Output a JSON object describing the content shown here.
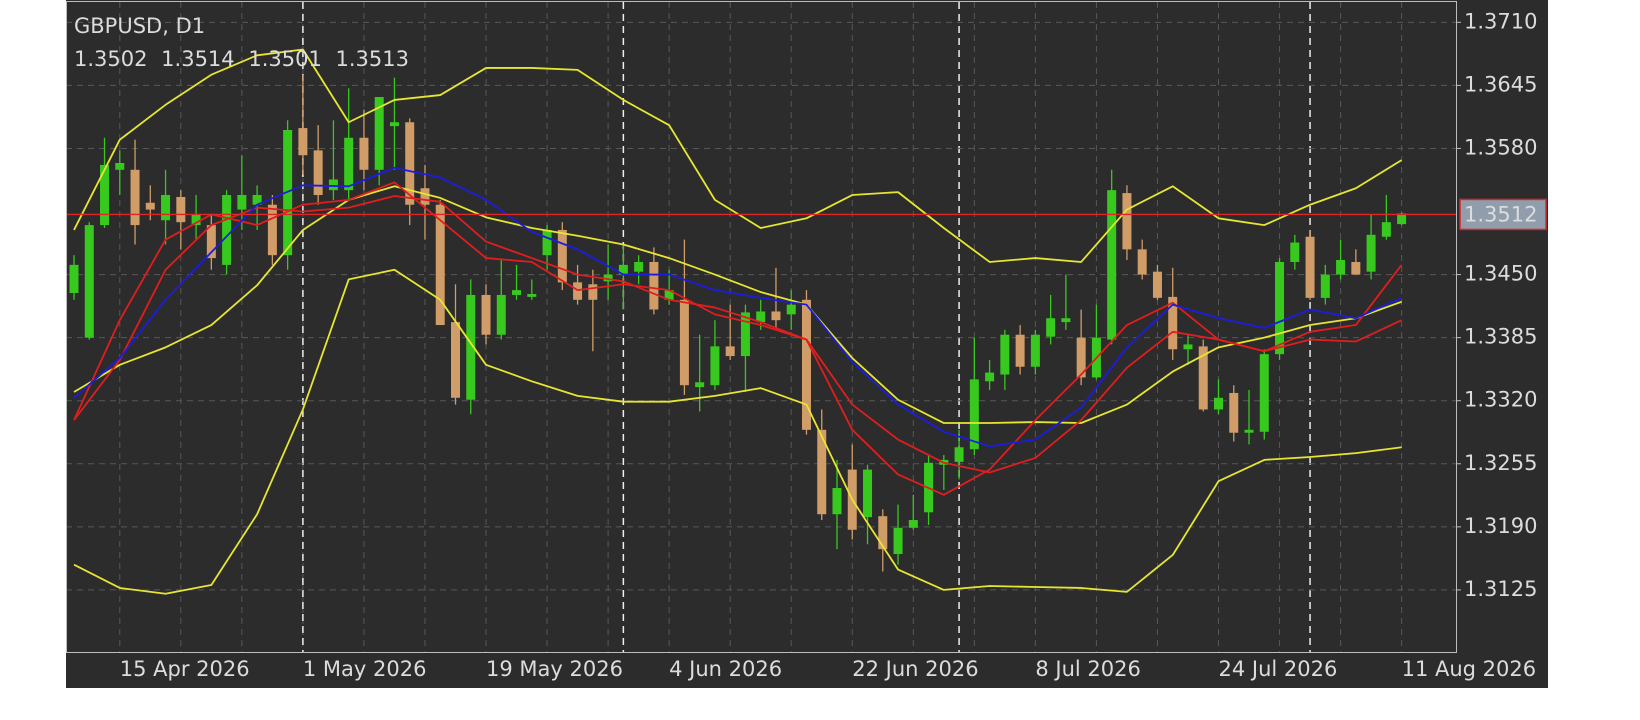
{
  "chart_data": {
    "type": "candlestick",
    "title": "GBPUSD, D1",
    "categories": [
      null,
      null,
      null,
      "15 Apr 2026",
      null,
      null,
      null,
      null,
      null,
      null,
      null,
      null,
      null,
      null,
      null,
      "1 May 2026",
      null,
      null,
      null,
      null,
      null,
      null,
      null,
      null,
      null,
      null,
      null,
      "19 May 2026",
      null,
      null,
      null,
      null,
      null,
      null,
      null,
      null,
      null,
      null,
      null,
      "4 Jun 2026",
      null,
      null,
      null,
      null,
      null,
      null,
      null,
      null,
      null,
      null,
      null,
      "22 Jun 2026",
      null,
      null,
      null,
      null,
      null,
      null,
      null,
      null,
      null,
      null,
      null,
      "8 Jul 2026",
      null,
      null,
      null,
      null,
      null,
      null,
      null,
      null,
      null,
      null,
      null,
      "24 Jul 2026",
      null,
      null,
      null,
      null,
      null,
      null,
      null,
      null,
      null,
      null,
      null,
      "11 Aug 2026"
    ],
    "open": [
      1.3431,
      1.3385,
      1.3501,
      1.3558,
      1.3558,
      1.3524,
      1.3506,
      1.353,
      1.3501,
      1.3501,
      1.346,
      1.3517,
      1.3522,
      1.3522,
      1.347,
      1.3601,
      1.3578,
      1.3537,
      1.3537,
      1.3591,
      1.3558,
      1.3603,
      1.3607,
      1.3539,
      1.3522,
      1.3401,
      1.3321,
      1.3429,
      1.3388,
      1.3429,
      1.3427,
      1.347,
      1.3496,
      1.3442,
      1.344,
      1.3443,
      1.345,
      1.3453,
      1.3463,
      1.3424,
      1.3424,
      1.3334,
      1.3336,
      1.3376,
      1.3366,
      1.3401,
      1.3412,
      1.3409,
      1.3424,
      1.329,
      1.3203,
      1.3249,
      1.32,
      1.3201,
      1.3162,
      1.3189,
      1.3205,
      1.3254,
      1.3257,
      1.327,
      1.334,
      1.3347,
      1.3388,
      1.3355,
      1.3386,
      1.3401,
      1.3385,
      1.3344,
      1.3383,
      1.3534,
      1.3476,
      1.3453,
      1.3427,
      1.3373,
      1.3376,
      1.3311,
      1.3328,
      1.3287,
      1.3288,
      1.3368,
      1.3463,
      1.3489,
      1.3426,
      1.345,
      1.3463,
      1.3453,
      1.3489,
      1.3502
    ],
    "high": [
      1.347,
      1.3504,
      1.3591,
      1.3578,
      1.3589,
      1.3542,
      1.3558,
      1.3537,
      1.3532,
      1.3512,
      1.3537,
      1.3573,
      1.3542,
      1.3532,
      1.3609,
      1.3656,
      1.3604,
      1.3609,
      1.3642,
      1.362,
      1.3633,
      1.3653,
      1.3611,
      1.3563,
      1.3527,
      1.344,
      1.3445,
      1.344,
      1.3465,
      1.346,
      1.3445,
      1.3501,
      1.3504,
      1.346,
      1.3455,
      1.3481,
      1.3481,
      1.347,
      1.3478,
      1.3455,
      1.3486,
      1.3388,
      1.3403,
      1.3419,
      1.3419,
      1.3424,
      1.3457,
      1.3434,
      1.3434,
      1.3311,
      1.3259,
      1.3275,
      1.3254,
      1.3208,
      1.3213,
      1.3223,
      1.3264,
      1.3264,
      1.329,
      1.3385,
      1.3362,
      1.3393,
      1.3398,
      1.3393,
      1.3429,
      1.345,
      1.3414,
      1.3419,
      1.3558,
      1.3542,
      1.3486,
      1.346,
      1.3457,
      1.3388,
      1.3383,
      1.3342,
      1.3336,
      1.3331,
      1.3373,
      1.3467,
      1.3491,
      1.3496,
      1.346,
      1.3486,
      1.3476,
      1.3512,
      1.3532,
      1.3514
    ],
    "low": [
      1.3424,
      1.3383,
      1.3498,
      1.3532,
      1.3481,
      1.3506,
      1.3481,
      1.3476,
      1.3486,
      1.3455,
      1.345,
      1.3496,
      1.3496,
      1.346,
      1.3455,
      1.3553,
      1.3522,
      1.3527,
      1.3527,
      1.3537,
      1.3542,
      1.3558,
      1.3501,
      1.3486,
      1.3398,
      1.3316,
      1.3306,
      1.3378,
      1.3383,
      1.3424,
      1.3424,
      1.3455,
      1.3434,
      1.3419,
      1.3371,
      1.3424,
      1.3414,
      1.344,
      1.3409,
      1.3419,
      1.3326,
      1.3309,
      1.3331,
      1.3362,
      1.3329,
      1.3393,
      1.3395,
      1.3393,
      1.3285,
      1.3197,
      1.3167,
      1.3177,
      1.3172,
      1.3144,
      1.3151,
      1.3187,
      1.3192,
      1.3228,
      1.3239,
      1.3264,
      1.3331,
      1.3331,
      1.3347,
      1.3347,
      1.3378,
      1.3393,
      1.3336,
      1.3342,
      1.3378,
      1.3465,
      1.3445,
      1.3424,
      1.3362,
      1.3357,
      1.3309,
      1.3306,
      1.3278,
      1.3275,
      1.328,
      1.3362,
      1.3455,
      1.3424,
      1.3419,
      1.3445,
      1.345,
      1.3445,
      1.3486,
      1.3501
    ],
    "close": [
      1.346,
      1.3501,
      1.3563,
      1.3565,
      1.3501,
      1.3517,
      1.3532,
      1.3504,
      1.3512,
      1.3467,
      1.3532,
      1.3532,
      1.3532,
      1.347,
      1.3599,
      1.3573,
      1.3532,
      1.3548,
      1.3591,
      1.3558,
      1.3633,
      1.3607,
      1.3522,
      1.3522,
      1.3398,
      1.3323,
      1.3429,
      1.3388,
      1.3429,
      1.3434,
      1.343,
      1.3496,
      1.3442,
      1.3424,
      1.3424,
      1.345,
      1.346,
      1.3463,
      1.3414,
      1.3434,
      1.3336,
      1.3339,
      1.3376,
      1.3366,
      1.3411,
      1.3412,
      1.3403,
      1.3419,
      1.329,
      1.3203,
      1.323,
      1.3187,
      1.3249,
      1.3167,
      1.3189,
      1.3197,
      1.3256,
      1.3259,
      1.3272,
      1.3342,
      1.3349,
      1.3388,
      1.3355,
      1.3388,
      1.3405,
      1.3405,
      1.3344,
      1.3385,
      1.3537,
      1.3476,
      1.345,
      1.3426,
      1.3373,
      1.3378,
      1.3311,
      1.3323,
      1.3287,
      1.329,
      1.3368,
      1.3463,
      1.3483,
      1.3426,
      1.345,
      1.3465,
      1.345,
      1.3491,
      1.3504,
      1.3513
    ],
    "up_color": "#38c91f",
    "down_color": "#d09c68",
    "overlays": [
      {
        "color": "#e6e632",
        "x": [
          0,
          3,
          6,
          9,
          12,
          15,
          18,
          21,
          24,
          27,
          30,
          33,
          36,
          39,
          42,
          45,
          48,
          51,
          54,
          57,
          60,
          63,
          66,
          69,
          72,
          75,
          78,
          81,
          84,
          87
        ],
        "values": [
          1.3496,
          1.3589,
          1.3625,
          1.3656,
          1.3676,
          1.3682,
          1.3607,
          1.363,
          1.3635,
          1.3663,
          1.3663,
          1.3661,
          1.363,
          1.3604,
          1.3527,
          1.3498,
          1.3508,
          1.3532,
          1.3535,
          1.3498,
          1.3463,
          1.3467,
          1.3463,
          1.3517,
          1.3541,
          1.3508,
          1.3501,
          1.3522,
          1.3539,
          1.3568
        ]
      },
      {
        "color": "#e6e632",
        "x": [
          0,
          3,
          6,
          9,
          12,
          15,
          18,
          21,
          24,
          27,
          30,
          33,
          36,
          39,
          42,
          45,
          48,
          51,
          54,
          57,
          60,
          63,
          66,
          69,
          72,
          75,
          78,
          81,
          84,
          87
        ],
        "values": [
          1.3329,
          1.3357,
          1.3375,
          1.3398,
          1.3439,
          1.3496,
          1.3527,
          1.3541,
          1.3529,
          1.3509,
          1.3498,
          1.349,
          1.3481,
          1.3467,
          1.345,
          1.3432,
          1.3419,
          1.3364,
          1.3321,
          1.3297,
          1.3297,
          1.3298,
          1.3297,
          1.3316,
          1.335,
          1.3375,
          1.3385,
          1.3398,
          1.3405,
          1.3422
        ]
      },
      {
        "color": "#e6e632",
        "x": [
          0,
          3,
          6,
          9,
          12,
          15,
          18,
          21,
          24,
          27,
          30,
          33,
          36,
          39,
          42,
          45,
          48,
          51,
          54,
          57,
          60,
          63,
          66,
          69,
          72,
          75,
          78,
          81,
          84,
          87
        ],
        "values": [
          1.3151,
          1.3127,
          1.3121,
          1.313,
          1.3203,
          1.3311,
          1.3445,
          1.3455,
          1.3424,
          1.3357,
          1.334,
          1.3325,
          1.3319,
          1.3319,
          1.3325,
          1.3333,
          1.3316,
          1.3218,
          1.3146,
          1.3125,
          1.3129,
          1.3128,
          1.3127,
          1.3123,
          1.3161,
          1.3237,
          1.3259,
          1.3262,
          1.3266,
          1.3272
        ]
      },
      {
        "color": "#e01e1e",
        "x": [
          0,
          3,
          6,
          9,
          12,
          15,
          18,
          21,
          24,
          27,
          30,
          33,
          36,
          39,
          42,
          45,
          48,
          51,
          54,
          57,
          60,
          63,
          66,
          69,
          72,
          75,
          78,
          81,
          84,
          87
        ],
        "values": [
          1.33,
          1.3362,
          1.3455,
          1.3501,
          1.3519,
          1.3515,
          1.3519,
          1.3531,
          1.3525,
          1.3484,
          1.3467,
          1.345,
          1.3443,
          1.3424,
          1.3416,
          1.3401,
          1.3383,
          1.3316,
          1.328,
          1.3256,
          1.3246,
          1.3261,
          1.33,
          1.3354,
          1.3391,
          1.3383,
          1.3371,
          1.3383,
          1.3381,
          1.3403
        ]
      },
      {
        "color": "#e01e1e",
        "x": [
          0,
          3,
          6,
          9,
          12,
          15,
          18,
          21,
          24,
          27,
          30,
          33,
          36,
          39,
          42,
          45,
          48,
          51,
          54,
          57,
          60,
          63,
          66,
          69,
          72,
          75,
          78,
          81,
          84,
          87
        ],
        "values": [
          1.33,
          1.3403,
          1.3486,
          1.3512,
          1.3501,
          1.3522,
          1.3527,
          1.3545,
          1.3506,
          1.3467,
          1.3463,
          1.3434,
          1.344,
          1.3434,
          1.3409,
          1.3398,
          1.3383,
          1.329,
          1.3244,
          1.3223,
          1.3249,
          1.33,
          1.3347,
          1.3398,
          1.3421,
          1.3383,
          1.3371,
          1.3391,
          1.3398,
          1.346
        ]
      },
      {
        "color": "#1c1ce0",
        "x": [
          0,
          3,
          6,
          9,
          12,
          15,
          18,
          21,
          24,
          27,
          30,
          33,
          36,
          39,
          42,
          45,
          48,
          51,
          54,
          57,
          60,
          63,
          66,
          69,
          72,
          75,
          78,
          81,
          84,
          87
        ],
        "values": [
          1.3323,
          1.3364,
          1.3424,
          1.3473,
          1.3522,
          1.3542,
          1.3541,
          1.356,
          1.355,
          1.3527,
          1.3494,
          1.3476,
          1.345,
          1.345,
          1.3434,
          1.3426,
          1.3419,
          1.336,
          1.3316,
          1.3288,
          1.3273,
          1.328,
          1.3313,
          1.3375,
          1.3419,
          1.3405,
          1.3395,
          1.3414,
          1.3405,
          1.3426
        ]
      }
    ],
    "current_price": 1.3512,
    "current_price_color": "#e02525",
    "ylim": [
      1.3061,
      1.3733
    ],
    "yticks": [
      {
        "value": 1.371,
        "label": "1.3710"
      },
      {
        "value": 1.3645,
        "label": "1.3645"
      },
      {
        "value": 1.358,
        "label": "1.3580"
      },
      {
        "value": 1.345,
        "label": "1.3450"
      },
      {
        "value": 1.3385,
        "label": "1.3385"
      },
      {
        "value": 1.332,
        "label": "1.3320"
      },
      {
        "value": 1.3255,
        "label": "1.3255"
      },
      {
        "value": 1.319,
        "label": "1.3190"
      },
      {
        "value": 1.3125,
        "label": "1.3125"
      }
    ],
    "grid": true
  }
}
